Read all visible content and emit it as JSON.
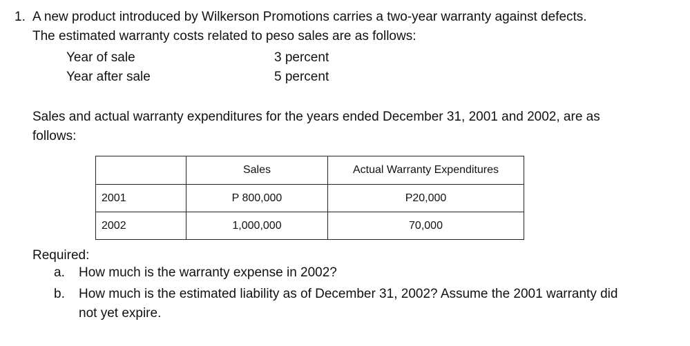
{
  "problem": {
    "number": "1.",
    "intro_line1": "A new product introduced by Wilkerson Promotions carries a two-year warranty against defects.",
    "intro_line2": "The estimated warranty costs related to peso sales are as follows:",
    "rates": [
      {
        "label": "Year of sale",
        "value": "3 percent"
      },
      {
        "label": "Year after sale",
        "value": "5 percent"
      }
    ],
    "sales_line1": "Sales and actual warranty expenditures for the years ended December 31, 2001 and 2002, are as",
    "sales_line2": "follows:"
  },
  "table": {
    "headers": [
      "",
      "Sales",
      "Actual Warranty Expenditures"
    ],
    "rows": [
      {
        "year": "2001",
        "sales": "P 800,000",
        "expenditures": "P20,000"
      },
      {
        "year": "2002",
        "sales": "1,000,000",
        "expenditures": "70,000"
      }
    ]
  },
  "required": {
    "heading": "Required:",
    "items": [
      {
        "marker": "a.",
        "line1": "How much is the warranty expense in 2002?",
        "line2": ""
      },
      {
        "marker": "b.",
        "line1": "How much is the estimated liability as of December 31, 2002?  Assume the 2001 warranty did",
        "line2": "not yet expire."
      }
    ]
  }
}
